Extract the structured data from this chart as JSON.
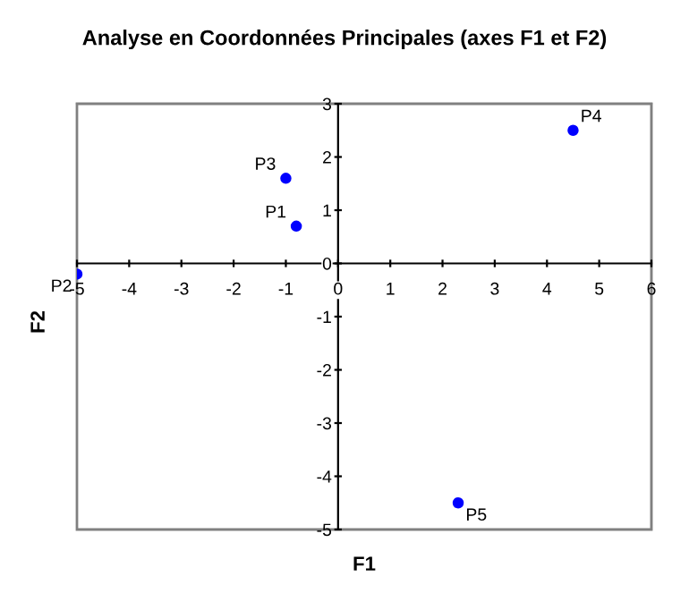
{
  "chart_data": {
    "type": "scatter",
    "title": "Analyse en Coordonnées Principales (axes F1 et F2)",
    "xlabel": "F1",
    "ylabel": "F2",
    "x": [
      -0.8,
      -5,
      -1.0,
      4.5,
      2.3
    ],
    "series": [
      {
        "color": "#0000ff",
        "values": [
          0.7,
          -0.2,
          1.6,
          2.5,
          -4.5
        ]
      }
    ],
    "annotations": [
      {
        "text": "P1",
        "x": -0.8,
        "y": 0.7
      },
      {
        "text": "P2",
        "x": -5,
        "y": -0.2
      },
      {
        "text": "P3",
        "x": -1.0,
        "y": 1.6
      },
      {
        "text": "P4",
        "x": 4.5,
        "y": 2.5
      },
      {
        "text": "P5",
        "x": 2.3,
        "y": -4.5
      }
    ],
    "xlim": [
      -5,
      6
    ],
    "ylim": [
      -5,
      3
    ],
    "xticks": [
      -5,
      -4,
      -3,
      -2,
      -1,
      0,
      1,
      2,
      3,
      4,
      5,
      6
    ],
    "yticks": [
      -5,
      -4,
      -3,
      -2,
      -1,
      0,
      1,
      2,
      3
    ],
    "marker": "circle",
    "grid": false,
    "legend": false
  }
}
